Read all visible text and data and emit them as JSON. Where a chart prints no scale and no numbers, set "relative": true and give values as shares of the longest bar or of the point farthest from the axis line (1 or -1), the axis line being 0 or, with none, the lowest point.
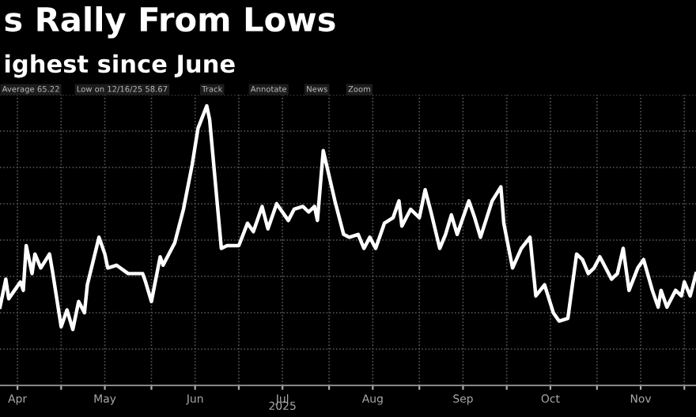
{
  "chart_data": {
    "type": "line",
    "title": "s Rally From Lows",
    "subtitle": "ighest since June",
    "xlabel": "2025",
    "annotations": [
      "Average 65.22",
      "Low on 12/16/25 58.67",
      "Track",
      "Annotate",
      "News",
      "Zoom"
    ],
    "relative": true,
    "grid": true,
    "tick_labels": "x",
    "marker": "none",
    "line_style": "solid",
    "xlim": [
      "2025-04-10",
      "2025-12-05"
    ],
    "xticks": [
      {
        "value": "2025-04-16",
        "label": "Apr"
      },
      {
        "value": "2025-05-01",
        "label": null
      },
      {
        "value": "2025-05-16",
        "label": "May"
      },
      {
        "value": "2025-06-01",
        "label": null
      },
      {
        "value": "2025-06-16",
        "label": "Jun"
      },
      {
        "value": "2025-07-01",
        "label": null
      },
      {
        "value": "2025-07-16",
        "label": "Jul"
      },
      {
        "value": "2025-08-01",
        "label": null
      },
      {
        "value": "2025-08-16",
        "label": "Aug"
      },
      {
        "value": "2025-09-01",
        "label": null
      },
      {
        "value": "2025-09-16",
        "label": "Sep"
      },
      {
        "value": "2025-10-01",
        "label": null
      },
      {
        "value": "2025-10-16",
        "label": "Oct"
      },
      {
        "value": "2025-11-01",
        "label": null
      },
      {
        "value": "2025-11-16",
        "label": "Nov"
      },
      {
        "value": "2025-12-01",
        "label": null
      }
    ],
    "x": [
      "2025-04-10",
      "2025-04-12",
      "2025-04-13",
      "2025-04-15",
      "2025-04-17",
      "2025-04-18",
      "2025-04-19",
      "2025-04-21",
      "2025-04-22",
      "2025-04-24",
      "2025-04-27",
      "2025-04-28",
      "2025-05-01",
      "2025-05-03",
      "2025-05-05",
      "2025-05-07",
      "2025-05-09",
      "2025-05-10",
      "2025-05-14",
      "2025-05-16",
      "2025-05-17",
      "2025-05-20",
      "2025-05-24",
      "2025-05-29",
      "2025-05-30",
      "2025-06-01",
      "2025-06-04",
      "2025-06-05",
      "2025-06-09",
      "2025-06-12",
      "2025-06-15",
      "2025-06-17",
      "2025-06-20",
      "2025-06-21",
      "2025-06-25",
      "2025-06-27",
      "2025-07-01",
      "2025-07-04",
      "2025-07-06",
      "2025-07-09",
      "2025-07-11",
      "2025-07-14",
      "2025-07-18",
      "2025-07-20",
      "2025-07-23",
      "2025-07-25",
      "2025-07-27",
      "2025-07-28",
      "2025-07-30",
      "2025-08-03",
      "2025-08-06",
      "2025-08-08",
      "2025-08-11",
      "2025-08-13",
      "2025-08-15",
      "2025-08-17",
      "2025-08-20",
      "2025-08-23",
      "2025-08-25",
      "2025-08-26",
      "2025-08-29",
      "2025-09-01",
      "2025-09-03",
      "2025-09-05",
      "2025-09-08",
      "2025-09-10",
      "2025-09-12",
      "2025-09-14",
      "2025-09-18",
      "2025-09-20",
      "2025-09-22",
      "2025-09-26",
      "2025-09-29",
      "2025-09-30",
      "2025-10-03",
      "2025-10-06",
      "2025-10-09",
      "2025-10-11",
      "2025-10-14",
      "2025-10-17",
      "2025-10-19",
      "2025-10-22",
      "2025-10-25",
      "2025-10-27",
      "2025-10-29",
      "2025-10-31",
      "2025-11-02",
      "2025-11-06",
      "2025-11-08",
      "2025-11-10",
      "2025-11-12",
      "2025-11-15",
      "2025-11-17",
      "2025-11-20",
      "2025-11-22",
      "2025-11-23",
      "2025-11-25",
      "2025-11-28",
      "2025-11-30",
      "2025-12-01",
      "2025-12-03",
      "2025-12-05"
    ],
    "series": [
      {
        "color": "#ffffff",
        "values": [
          0.28,
          0.38,
          0.31,
          0.34,
          0.37,
          0.34,
          0.5,
          0.4,
          0.47,
          0.42,
          0.47,
          0.41,
          0.21,
          0.27,
          0.2,
          0.3,
          0.26,
          0.36,
          0.53,
          0.47,
          0.42,
          0.43,
          0.4,
          0.4,
          0.37,
          0.3,
          0.46,
          0.43,
          0.51,
          0.63,
          0.79,
          0.92,
          1,
          0.95,
          0.49,
          0.5,
          0.5,
          0.58,
          0.55,
          0.64,
          0.56,
          0.65,
          0.59,
          0.63,
          0.64,
          0.62,
          0.64,
          0.59,
          0.84,
          0.66,
          0.54,
          0.53,
          0.54,
          0.49,
          0.53,
          0.49,
          0.58,
          0.6,
          0.66,
          0.57,
          0.63,
          0.6,
          0.7,
          0.62,
          0.49,
          0.54,
          0.61,
          0.54,
          0.66,
          0.6,
          0.53,
          0.66,
          0.71,
          0.58,
          0.42,
          0.49,
          0.53,
          0.32,
          0.36,
          0.26,
          0.23,
          0.24,
          0.47,
          0.45,
          0.4,
          0.42,
          0.46,
          0.38,
          0.4,
          0.49,
          0.34,
          0.42,
          0.45,
          0.34,
          0.28,
          0.34,
          0.28,
          0.34,
          0.32,
          0.37,
          0.32,
          0.4
        ]
      }
    ]
  }
}
